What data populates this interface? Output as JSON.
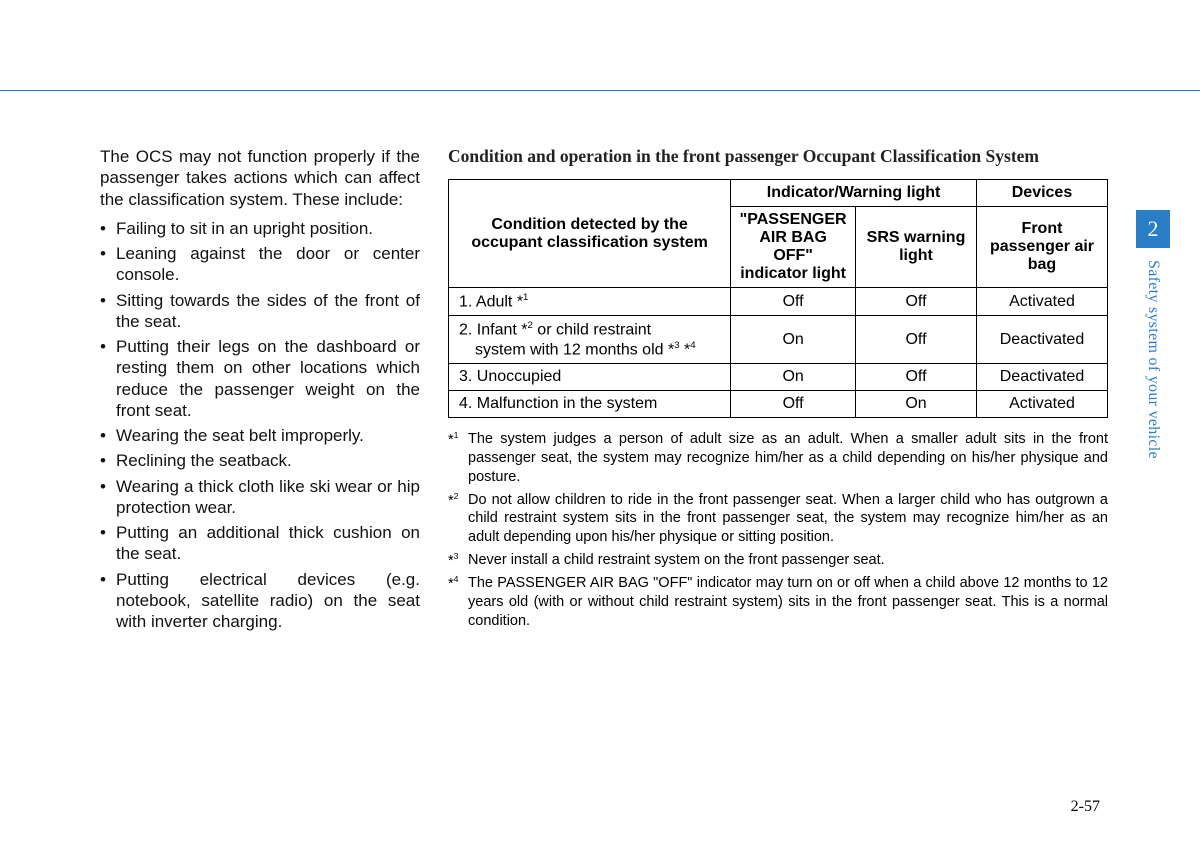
{
  "colors": {
    "accent": "#2a7ec5",
    "text": "#000000",
    "bg": "#ffffff"
  },
  "left": {
    "intro": "The OCS may not function properly if the passenger takes actions which can affect the classification system. These include:",
    "items": [
      "Failing to sit in an upright position.",
      "Leaning against the door or center console.",
      "Sitting towards the sides of the front of the seat.",
      "Putting their legs on the dashboard or resting them on other locations which reduce the passenger weight on the front seat.",
      "Wearing the seat belt improperly.",
      "Reclining the seatback.",
      "Wearing a thick cloth like ski wear or hip protection wear.",
      "Putting an additional thick cushion on the seat.",
      "Putting electrical devices (e.g. notebook, satellite radio) on the seat with inverter charging."
    ]
  },
  "right": {
    "title": "Condition and operation in the front passenger Occupant Classification System",
    "table": {
      "header_condition": "Condition detected by the occupant classification system",
      "header_indicator": "Indicator/Warning light",
      "header_devices": "Devices",
      "header_airbagoff": "\"PASSENGER AIR BAG OFF\" indicator light",
      "header_srs": "SRS warning light",
      "header_front": "Front passenger air bag",
      "rows": [
        {
          "cond_html": "1. Adult *<sup>1</sup>",
          "c1": "Off",
          "c2": "Off",
          "c3": "Activated"
        },
        {
          "cond_html": "2. Infant *<sup>2</sup> or child restraint<span class=\"indent\">system with 12 months old *<sup>3</sup> *<sup>4</sup></span>",
          "c1": "On",
          "c2": "Off",
          "c3": "Deactivated"
        },
        {
          "cond_html": "3. Unoccupied",
          "c1": "On",
          "c2": "Off",
          "c3": "Deactivated"
        },
        {
          "cond_html": "4. Malfunction in the system",
          "c1": "Off",
          "c2": "On",
          "c3": "Activated"
        }
      ]
    },
    "footnotes": [
      {
        "marker": "*<sup>1</sup>",
        "text": "The system judges a person of adult size as an adult. When a smaller adult sits in the front passenger seat, the system may recognize him/her as a child depending on his/her physique and posture."
      },
      {
        "marker": "*<sup>2</sup>",
        "text": "Do not allow children to ride in the front passenger seat. When a larger child who has outgrown a child restraint system sits in the front passenger seat, the system may recognize him/her as an adult depending upon his/her physique or sitting position."
      },
      {
        "marker": "*<sup>3</sup>",
        "text": "Never install a child restraint system on the front passenger seat."
      },
      {
        "marker": "*<sup>4</sup>",
        "text": "The PASSENGER AIR BAG \"OFF\" indicator may turn on or off when a child above 12 months to 12 years old (with or without child restraint system) sits in the front passenger seat. This is a normal condition."
      }
    ]
  },
  "sidebar": {
    "chapter": "2",
    "label": "Safety system of your vehicle"
  },
  "pageNumber": "2-57"
}
